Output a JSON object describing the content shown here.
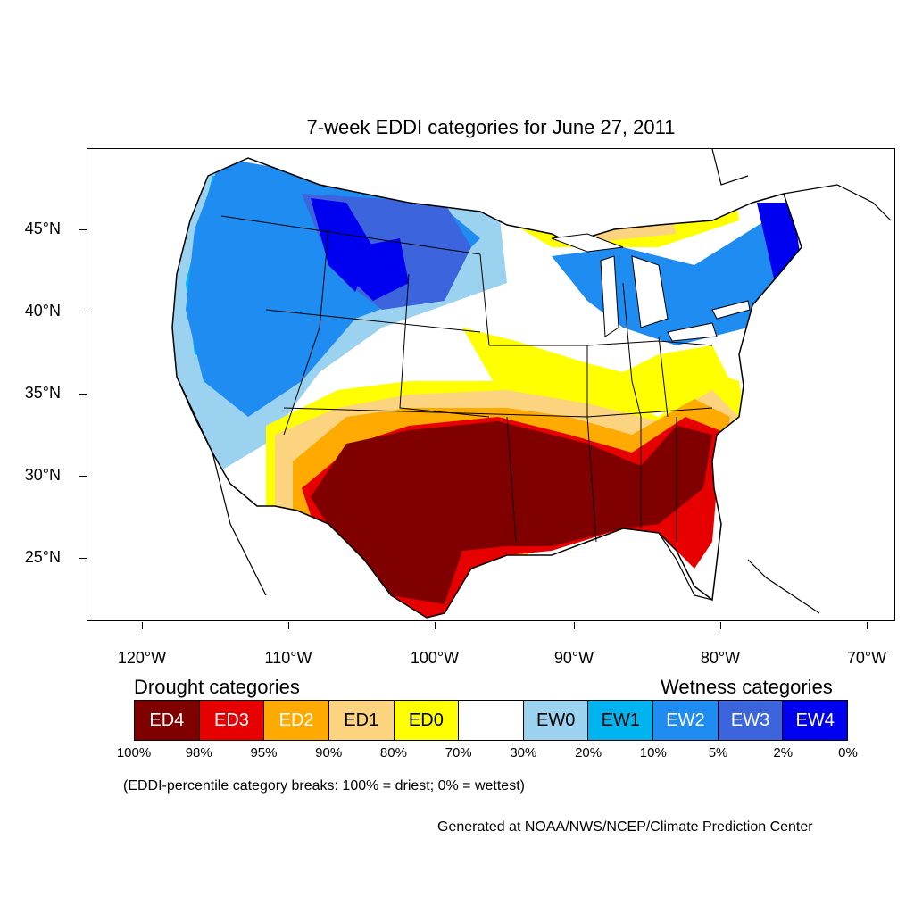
{
  "title": "7-week EDDI categories for June 27, 2011",
  "lat_labels": [
    "45°N",
    "40°N",
    "35°N",
    "30°N",
    "25°N"
  ],
  "lon_labels": [
    "120°W",
    "110°W",
    "100°W",
    "90°W",
    "80°W",
    "70°W"
  ],
  "legend": {
    "drought_heading": "Drought categories",
    "wetness_heading": "Wetness categories",
    "categories": [
      {
        "label": "ED4",
        "color": "#800000",
        "text_color": "#ffffff"
      },
      {
        "label": "ED3",
        "color": "#e60000",
        "text_color": "#ffffff"
      },
      {
        "label": "ED2",
        "color": "#ffaa00",
        "text_color": "#ffffff"
      },
      {
        "label": "ED1",
        "color": "#fcd37f",
        "text_color": "#000000"
      },
      {
        "label": "ED0",
        "color": "#ffff00",
        "text_color": "#000000"
      },
      {
        "label": "",
        "color": "#ffffff",
        "text_color": "#000000"
      },
      {
        "label": "EW0",
        "color": "#9bd2f0",
        "text_color": "#000000"
      },
      {
        "label": "EW1",
        "color": "#00b4f0",
        "text_color": "#000000"
      },
      {
        "label": "EW2",
        "color": "#1e8cf0",
        "text_color": "#ffffff"
      },
      {
        "label": "EW3",
        "color": "#3c64dc",
        "text_color": "#ffffff"
      },
      {
        "label": "EW4",
        "color": "#0000f0",
        "text_color": "#ffffff"
      }
    ],
    "breaks": [
      "100%",
      "98%",
      "95%",
      "90%",
      "80%",
      "70%",
      "30%",
      "20%",
      "10%",
      "5%",
      "2%",
      "0%"
    ]
  },
  "note": "(EDDI-percentile category breaks: 100% = driest; 0% = wettest)",
  "credit": "Generated at NOAA/NWS/NCEP/Climate Prediction Center"
}
